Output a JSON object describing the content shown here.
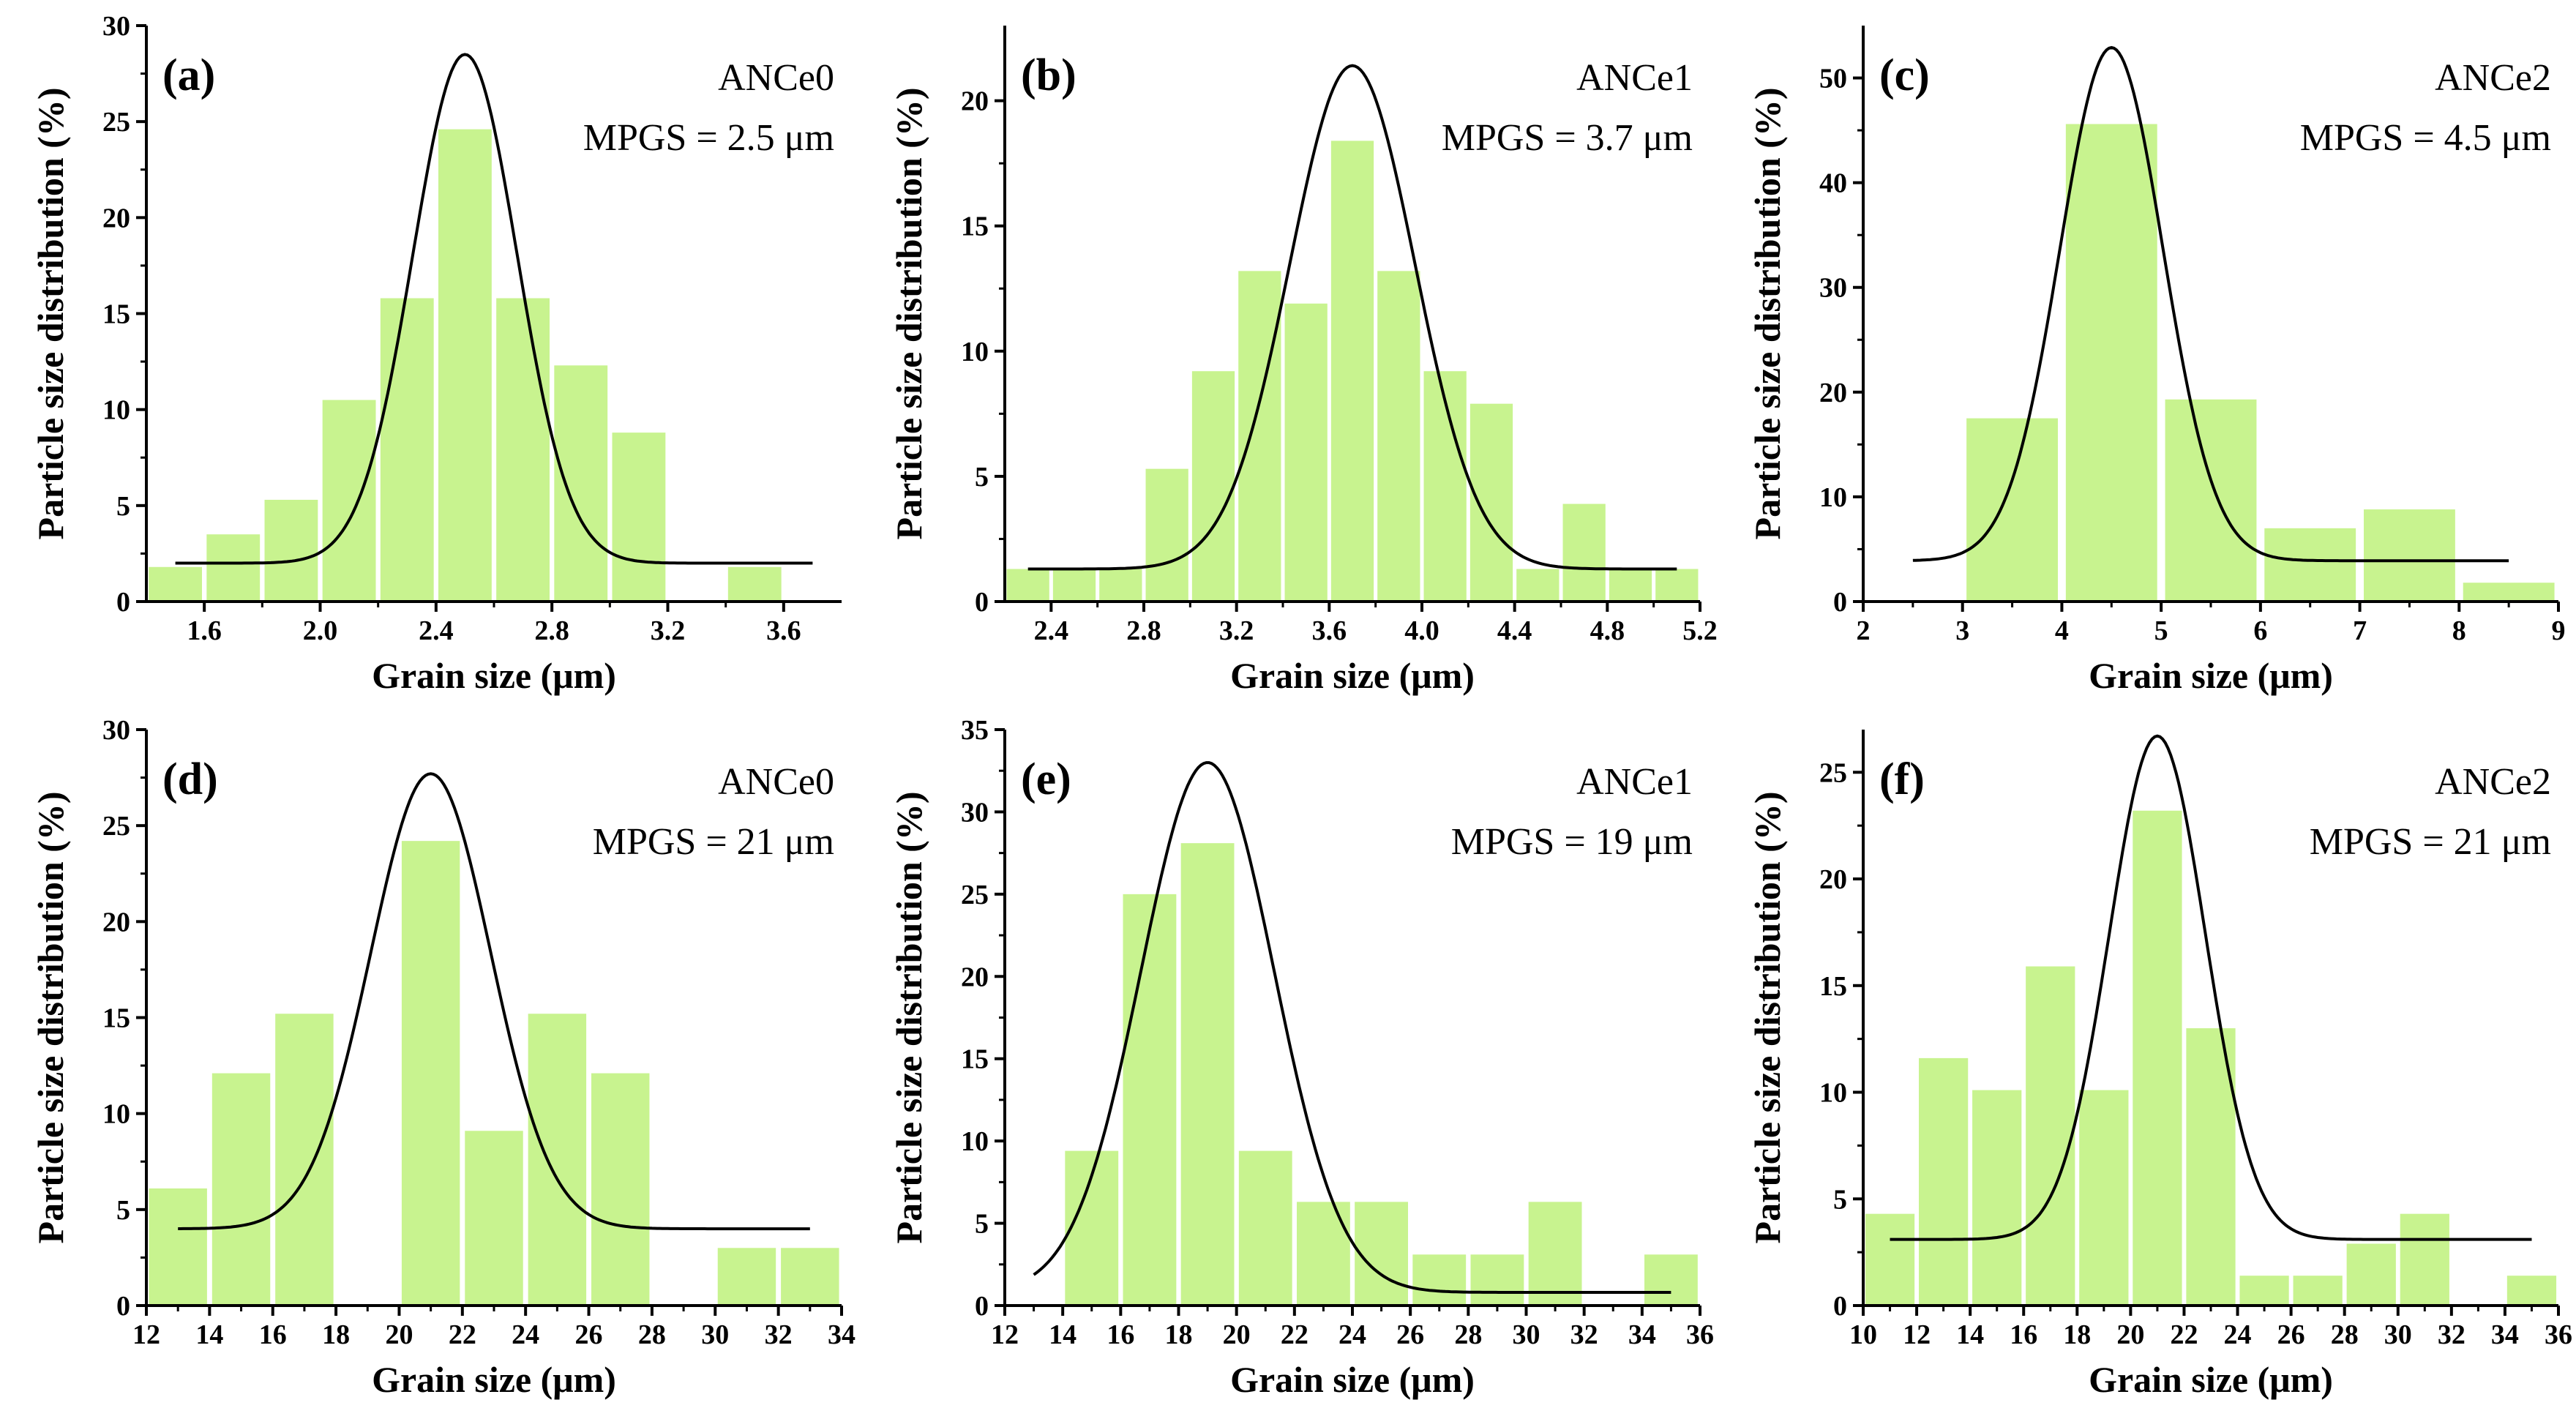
{
  "chart_data": [
    {
      "type": "bar",
      "panel_label": "(a)",
      "sample": "ANCe0",
      "mpgs": "MPGS = 2.5 μm",
      "xlabel": "Grain size (μm)",
      "ylabel": "Particle size distribution (%)",
      "xlim": [
        1.4,
        3.8
      ],
      "ylim": [
        0,
        30
      ],
      "xticks": [
        1.6,
        2.0,
        2.4,
        2.8,
        3.2,
        3.6
      ],
      "xtick_labels": [
        "1.6",
        "2.0",
        "2.4",
        "2.8",
        "3.2",
        "3.6"
      ],
      "yticks": [
        0,
        5,
        10,
        15,
        20,
        25,
        30
      ],
      "ytick_labels": [
        "0",
        "5",
        "10",
        "15",
        "20",
        "25",
        "30"
      ],
      "bin_width": 0.2,
      "x": [
        1.5,
        1.7,
        1.9,
        2.1,
        2.3,
        2.5,
        2.7,
        2.9,
        3.1,
        3.3,
        3.5
      ],
      "values": [
        1.8,
        3.5,
        5.3,
        10.5,
        15.8,
        24.6,
        15.8,
        12.3,
        8.8,
        0,
        1.8
      ],
      "fit": {
        "type": "gaussian",
        "baseline": 2.0,
        "amplitude": 26.5,
        "center": 2.5,
        "sigma": 0.18,
        "x_range": [
          1.5,
          3.7
        ]
      }
    },
    {
      "type": "bar",
      "panel_label": "(b)",
      "sample": "ANCe1",
      "mpgs": "MPGS = 3.7 μm",
      "xlabel": "Grain size (μm)",
      "ylabel": "Particle size distribution (%)",
      "xlim": [
        2.2,
        5.2
      ],
      "ylim": [
        0,
        23
      ],
      "xticks": [
        2.4,
        2.8,
        3.2,
        3.6,
        4.0,
        4.4,
        4.8,
        5.2
      ],
      "xtick_labels": [
        "2.4",
        "2.8",
        "3.2",
        "3.6",
        "4.0",
        "4.4",
        "4.8",
        "5.2"
      ],
      "yticks": [
        0,
        5,
        10,
        15,
        20
      ],
      "ytick_labels": [
        "0",
        "5",
        "10",
        "15",
        "20"
      ],
      "bin_width": 0.2,
      "x": [
        2.3,
        2.5,
        2.7,
        2.9,
        3.1,
        3.3,
        3.5,
        3.7,
        3.9,
        4.1,
        4.3,
        4.5,
        4.7,
        4.9,
        5.1
      ],
      "values": [
        1.3,
        1.3,
        1.3,
        5.3,
        9.2,
        13.2,
        11.9,
        18.4,
        13.2,
        9.2,
        7.9,
        1.3,
        3.9,
        1.3,
        1.3
      ],
      "fit": {
        "type": "gaussian",
        "baseline": 1.3,
        "amplitude": 20.1,
        "center": 3.7,
        "sigma": 0.27,
        "x_range": [
          2.3,
          5.1
        ]
      }
    },
    {
      "type": "bar",
      "panel_label": "(c)",
      "sample": "ANCe2",
      "mpgs": "MPGS = 4.5 μm",
      "xlabel": "Grain size (μm)",
      "ylabel": "Particle size distribution (%)",
      "xlim": [
        2,
        9
      ],
      "ylim": [
        0,
        55
      ],
      "xticks": [
        2,
        3,
        4,
        5,
        6,
        7,
        8,
        9
      ],
      "xtick_labels": [
        "2",
        "3",
        "4",
        "5",
        "6",
        "7",
        "8",
        "9"
      ],
      "yticks": [
        0,
        10,
        20,
        30,
        40,
        50
      ],
      "ytick_labels": [
        "0",
        "10",
        "20",
        "30",
        "40",
        "50"
      ],
      "bin_width": 1.0,
      "x": [
        3.5,
        4.5,
        5.5,
        6.5,
        7.5,
        8.5
      ],
      "values": [
        17.5,
        45.6,
        19.3,
        7.0,
        8.8,
        1.8
      ],
      "fit": {
        "type": "gaussian",
        "baseline": 3.9,
        "amplitude": 49,
        "center": 4.5,
        "sigma": 0.52,
        "x_range": [
          2.5,
          8.5
        ]
      }
    },
    {
      "type": "bar",
      "panel_label": "(d)",
      "sample": "ANCe0",
      "mpgs": "MPGS = 21 μm",
      "xlabel": "Grain size (μm)",
      "ylabel": "Particle size distribution (%)",
      "xlim": [
        12,
        34
      ],
      "ylim": [
        0,
        30
      ],
      "xticks": [
        12,
        14,
        16,
        18,
        20,
        22,
        24,
        26,
        28,
        30,
        32,
        34
      ],
      "xtick_labels": [
        "12",
        "14",
        "16",
        "18",
        "20",
        "22",
        "24",
        "26",
        "28",
        "30",
        "32",
        "34"
      ],
      "yticks": [
        0,
        5,
        10,
        15,
        20,
        25,
        30
      ],
      "ytick_labels": [
        "0",
        "5",
        "10",
        "15",
        "20",
        "25",
        "30"
      ],
      "bin_width": 2.0,
      "x": [
        13,
        15,
        17,
        19,
        21,
        23,
        25,
        27,
        29,
        31,
        33
      ],
      "values": [
        6.1,
        12.1,
        15.2,
        0,
        24.2,
        9.1,
        15.2,
        12.1,
        0,
        3.0,
        3.0
      ],
      "fit": {
        "type": "gaussian",
        "baseline": 4.0,
        "amplitude": 23.7,
        "center": 21.0,
        "sigma": 1.9,
        "x_range": [
          13,
          33
        ]
      }
    },
    {
      "type": "bar",
      "panel_label": "(e)",
      "sample": "ANCe1",
      "mpgs": "MPGS = 19 μm",
      "xlabel": "Grain size (μm)",
      "ylabel": "Particle size distribution (%)",
      "xlim": [
        12,
        36
      ],
      "ylim": [
        0,
        35
      ],
      "xticks": [
        12,
        14,
        16,
        18,
        20,
        22,
        24,
        26,
        28,
        30,
        32,
        34,
        36
      ],
      "xtick_labels": [
        "12",
        "14",
        "16",
        "18",
        "20",
        "22",
        "24",
        "26",
        "28",
        "30",
        "32",
        "34",
        "36"
      ],
      "yticks": [
        0,
        5,
        10,
        15,
        20,
        25,
        30,
        35
      ],
      "ytick_labels": [
        "0",
        "5",
        "10",
        "15",
        "20",
        "25",
        "30",
        "35"
      ],
      "bin_width": 2.0,
      "x": [
        15,
        17,
        19,
        21,
        23,
        25,
        27,
        29,
        31,
        33,
        35
      ],
      "values": [
        9.4,
        25.0,
        28.1,
        9.4,
        6.3,
        6.3,
        3.1,
        3.1,
        6.3,
        0,
        3.1
      ],
      "fit": {
        "type": "gaussian",
        "baseline": 0.8,
        "amplitude": 32.2,
        "center": 19.0,
        "sigma": 2.3,
        "x_range": [
          13,
          35
        ]
      }
    },
    {
      "type": "bar",
      "panel_label": "(f)",
      "sample": "ANCe2",
      "mpgs": "MPGS = 21 μm",
      "xlabel": "Grain size (μm)",
      "ylabel": "Particle size distribution (%)",
      "xlim": [
        10,
        36
      ],
      "ylim": [
        0,
        27
      ],
      "xticks": [
        10,
        12,
        14,
        16,
        18,
        20,
        22,
        24,
        26,
        28,
        30,
        32,
        34,
        36
      ],
      "xtick_labels": [
        "10",
        "12",
        "14",
        "16",
        "18",
        "20",
        "22",
        "24",
        "26",
        "28",
        "30",
        "32",
        "34",
        "36"
      ],
      "yticks": [
        0,
        5,
        10,
        15,
        20,
        25
      ],
      "ytick_labels": [
        "0",
        "5",
        "10",
        "15",
        "20",
        "25"
      ],
      "bin_width": 2.0,
      "x": [
        11,
        13,
        15,
        17,
        19,
        21,
        23,
        25,
        27,
        29,
        31,
        33,
        35
      ],
      "values": [
        4.3,
        11.6,
        10.1,
        15.9,
        10.1,
        23.2,
        13.0,
        1.4,
        1.4,
        2.9,
        4.3,
        0,
        1.4
      ],
      "fit": {
        "type": "gaussian",
        "baseline": 3.1,
        "amplitude": 23.6,
        "center": 21.0,
        "sigma": 1.8,
        "x_range": [
          11,
          35
        ]
      }
    }
  ]
}
